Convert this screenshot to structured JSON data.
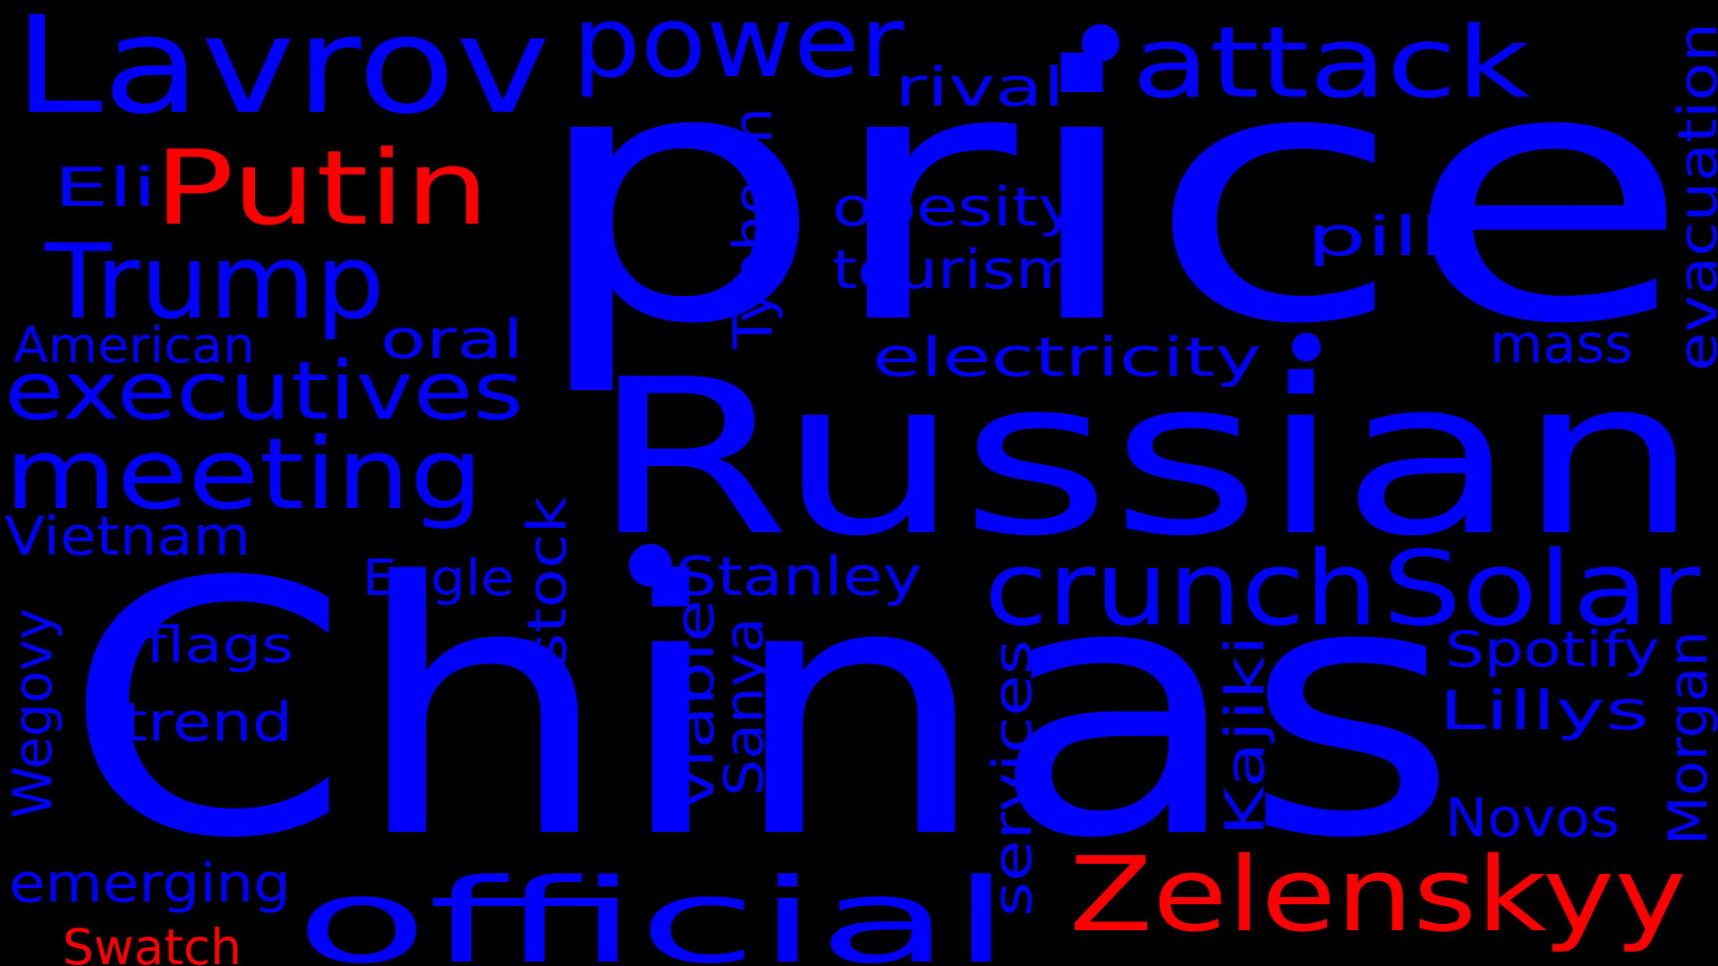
{
  "colors": {
    "background": "#000000",
    "blue": "#0000ff",
    "red": "#ff0000"
  },
  "words": [
    {
      "text": "price",
      "color": "blue"
    },
    {
      "text": "Chinas",
      "color": "blue"
    },
    {
      "text": "Russian",
      "color": "blue"
    },
    {
      "text": "Lavrov",
      "color": "blue"
    },
    {
      "text": "power",
      "color": "blue"
    },
    {
      "text": "attack",
      "color": "blue"
    },
    {
      "text": "Putin",
      "color": "red"
    },
    {
      "text": "Trump",
      "color": "blue"
    },
    {
      "text": "Eli",
      "color": "blue"
    },
    {
      "text": "executives",
      "color": "blue"
    },
    {
      "text": "meeting",
      "color": "blue"
    },
    {
      "text": "American",
      "color": "blue"
    },
    {
      "text": "oral",
      "color": "blue"
    },
    {
      "text": "Vietnam",
      "color": "blue"
    },
    {
      "text": "rival",
      "color": "blue"
    },
    {
      "text": "obesity",
      "color": "blue"
    },
    {
      "text": "tourism",
      "color": "blue"
    },
    {
      "text": "electricity",
      "color": "blue"
    },
    {
      "text": "pill",
      "color": "blue"
    },
    {
      "text": "mass",
      "color": "blue"
    },
    {
      "text": "Typhoon",
      "color": "blue"
    },
    {
      "text": "evacuation",
      "color": "blue"
    },
    {
      "text": "crunch",
      "color": "blue"
    },
    {
      "text": "Solar",
      "color": "blue"
    },
    {
      "text": "Stanley",
      "color": "blue"
    },
    {
      "text": "Eagle",
      "color": "blue"
    },
    {
      "text": "stock",
      "color": "blue"
    },
    {
      "text": "flags",
      "color": "blue"
    },
    {
      "text": "trend",
      "color": "blue"
    },
    {
      "text": "Wegovy",
      "color": "blue"
    },
    {
      "text": "viable",
      "color": "blue"
    },
    {
      "text": "Sanya",
      "color": "blue"
    },
    {
      "text": "services",
      "color": "blue"
    },
    {
      "text": "Kajiki",
      "color": "blue"
    },
    {
      "text": "Spotify",
      "color": "blue"
    },
    {
      "text": "Lillys",
      "color": "blue"
    },
    {
      "text": "Morgan",
      "color": "blue"
    },
    {
      "text": "Novos",
      "color": "blue"
    },
    {
      "text": "Zelenskyy",
      "color": "red"
    },
    {
      "text": "official",
      "color": "blue"
    },
    {
      "text": "emerging",
      "color": "blue"
    },
    {
      "text": "Swatch",
      "color": "red"
    }
  ]
}
